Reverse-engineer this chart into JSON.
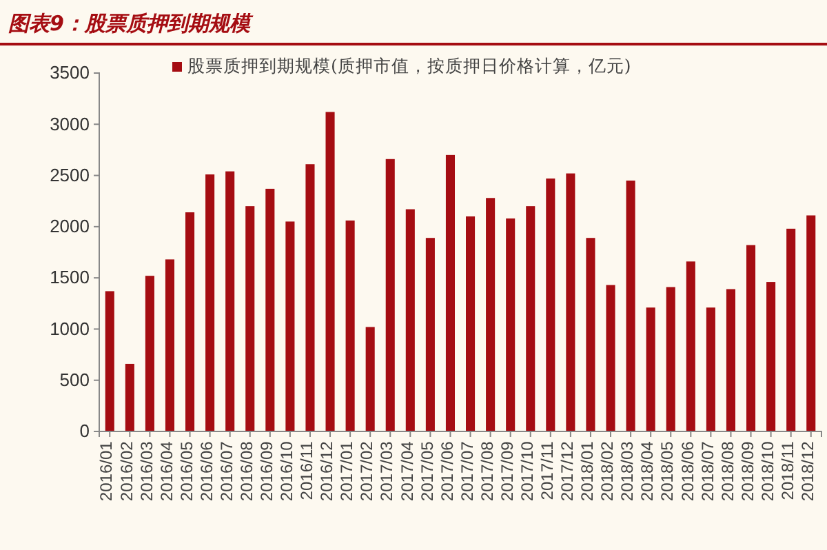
{
  "chart_data": {
    "type": "bar",
    "title": "图表9：股票质押到期规模",
    "categories": [
      "2016/01",
      "2016/02",
      "2016/03",
      "2016/04",
      "2016/05",
      "2016/06",
      "2016/07",
      "2016/08",
      "2016/09",
      "2016/10",
      "2016/11",
      "2016/12",
      "2017/01",
      "2017/02",
      "2017/03",
      "2017/04",
      "2017/05",
      "2017/06",
      "2017/07",
      "2017/08",
      "2017/09",
      "2017/10",
      "2017/11",
      "2017/12",
      "2018/01",
      "2018/02",
      "2018/03",
      "2018/04",
      "2018/05",
      "2018/06",
      "2018/07",
      "2018/08",
      "2018/09",
      "2018/10",
      "2018/11",
      "2018/12"
    ],
    "series": [
      {
        "name": "股票质押到期规模(质押市值，按质押日价格计算，亿元)",
        "color": "#a50d12",
        "values": [
          1370,
          660,
          1520,
          1680,
          2140,
          2510,
          2540,
          2200,
          2370,
          2050,
          2610,
          3120,
          2060,
          1020,
          2660,
          2170,
          1890,
          2700,
          2100,
          2280,
          2080,
          2200,
          2470,
          2520,
          1890,
          1430,
          2450,
          1210,
          1410,
          1660,
          1210,
          1390,
          1820,
          1460,
          1980,
          2110
        ]
      }
    ],
    "ylim": [
      0,
      3500
    ],
    "yticks": [
      0,
      500,
      1000,
      1500,
      2000,
      2500,
      3000,
      3500
    ],
    "grid": false,
    "legend": "top"
  }
}
